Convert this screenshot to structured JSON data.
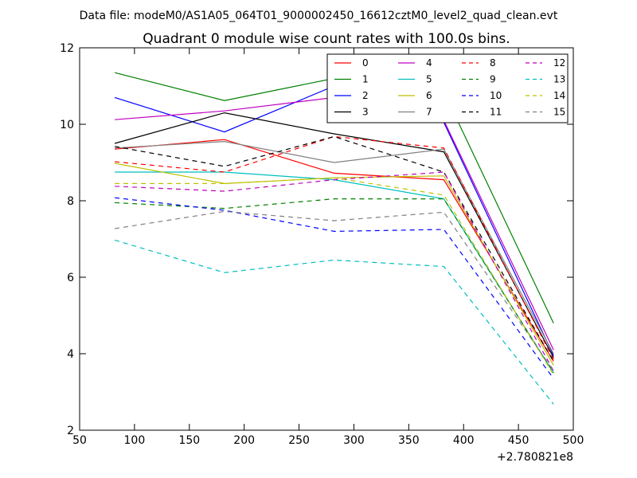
{
  "header": "Data file: modeM0/AS1A05_064T01_9000002450_16612cztM0_level2_quad_clean.evt",
  "chart_data": {
    "type": "line",
    "title": "Quadrant 0 module wise count rates with 100.0s bins.",
    "x_offset_label": "+2.780821e8",
    "x": [
      82,
      182,
      282,
      382,
      482
    ],
    "xlim": [
      50,
      500
    ],
    "ylim": [
      2,
      12
    ],
    "xticks": [
      50,
      100,
      150,
      200,
      250,
      300,
      350,
      400,
      450,
      500
    ],
    "yticks": [
      2,
      4,
      6,
      8,
      10,
      12
    ],
    "legend_position": "top-right",
    "series": [
      {
        "name": "0",
        "color": "#ff0000",
        "dash": "solid",
        "values": [
          9.35,
          9.6,
          8.72,
          8.55,
          3.8
        ]
      },
      {
        "name": "1",
        "color": "#008000",
        "dash": "solid",
        "values": [
          11.35,
          10.62,
          11.2,
          10.85,
          4.8
        ]
      },
      {
        "name": "2",
        "color": "#0000ff",
        "dash": "solid",
        "values": [
          10.7,
          9.8,
          11.0,
          10.05,
          3.95
        ]
      },
      {
        "name": "3",
        "color": "#000000",
        "dash": "solid",
        "values": [
          9.5,
          10.3,
          9.75,
          9.28,
          3.9
        ]
      },
      {
        "name": "4",
        "color": "#bf00bf",
        "dash": "solid",
        "values": [
          10.12,
          10.35,
          10.7,
          10.1,
          4.1
        ]
      },
      {
        "name": "5",
        "color": "#00bfbf",
        "dash": "solid",
        "values": [
          8.75,
          8.75,
          8.55,
          8.05,
          3.5
        ]
      },
      {
        "name": "6",
        "color": "#bfbf00",
        "dash": "solid",
        "values": [
          8.98,
          8.45,
          8.6,
          8.65,
          3.7
        ]
      },
      {
        "name": "7",
        "color": "#808080",
        "dash": "solid",
        "values": [
          9.38,
          9.55,
          9.0,
          9.35,
          4.0
        ]
      },
      {
        "name": "8",
        "color": "#ff0000",
        "dash": "dashed",
        "values": [
          9.02,
          8.75,
          9.68,
          9.38,
          3.85
        ]
      },
      {
        "name": "9",
        "color": "#008000",
        "dash": "dashed",
        "values": [
          7.95,
          7.8,
          8.05,
          8.05,
          3.5
        ]
      },
      {
        "name": "10",
        "color": "#0000ff",
        "dash": "dashed",
        "values": [
          8.08,
          7.75,
          7.2,
          7.25,
          3.35
        ]
      },
      {
        "name": "11",
        "color": "#000000",
        "dash": "dashed",
        "values": [
          9.42,
          8.9,
          9.68,
          8.75,
          3.8
        ]
      },
      {
        "name": "12",
        "color": "#bf00bf",
        "dash": "dashed",
        "values": [
          8.38,
          8.25,
          8.55,
          8.75,
          3.55
        ]
      },
      {
        "name": "13",
        "color": "#00bfbf",
        "dash": "dashed",
        "values": [
          6.97,
          6.12,
          6.45,
          6.28,
          2.68
        ]
      },
      {
        "name": "14",
        "color": "#bfbf00",
        "dash": "dashed",
        "values": [
          8.45,
          8.45,
          8.6,
          8.15,
          3.45
        ]
      },
      {
        "name": "15",
        "color": "#808080",
        "dash": "dashed",
        "values": [
          7.27,
          7.72,
          7.48,
          7.7,
          3.55
        ]
      }
    ]
  }
}
